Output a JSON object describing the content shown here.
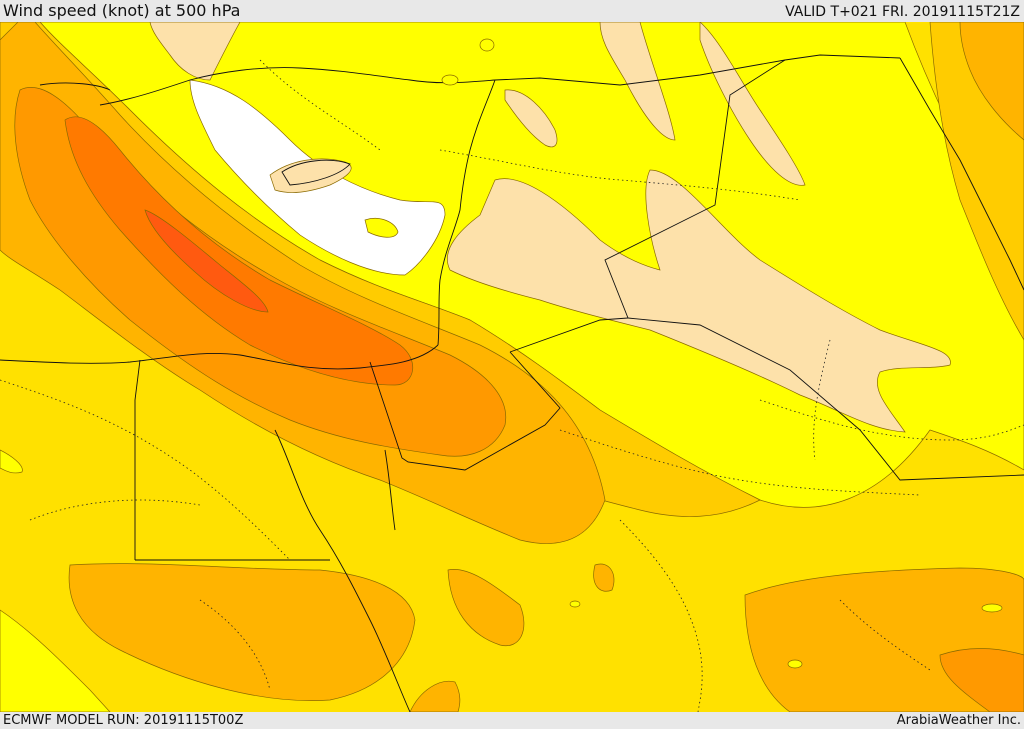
{
  "header": {
    "title": "Wind speed (knot) at 500 hPa",
    "valid": "VALID T+021 FRI. 20191115T21Z"
  },
  "footer": {
    "model_run": "ECMWF MODEL RUN: 20191115T00Z",
    "credit": "ArabiaWeather Inc."
  },
  "legend_colors": {
    "white": "#ffffff",
    "peach": "#fde1aa",
    "yellow": "#ffff00",
    "light_gold": "#ffe100",
    "gold": "#ffcc00",
    "amber": "#ffb400",
    "orange": "#ff9900",
    "dark_orange": "#ff7a00",
    "red_orange": "#ff5a10"
  }
}
